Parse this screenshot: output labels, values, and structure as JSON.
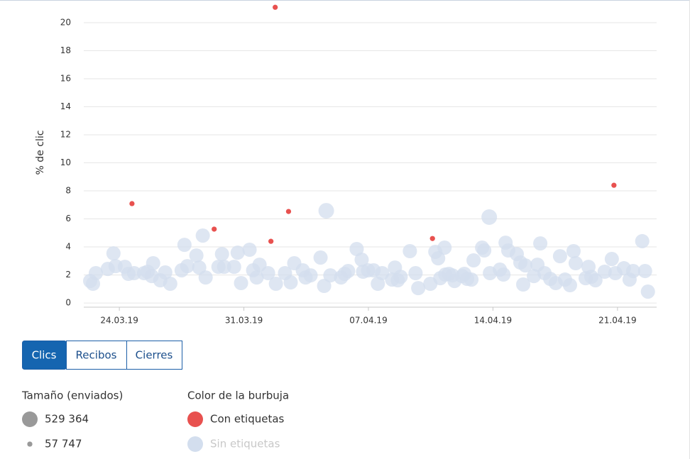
{
  "chart_data": {
    "type": "bubble",
    "y_label": "% de clic",
    "xlim": [
      0,
      32.2
    ],
    "xticks": [
      {
        "value": 2,
        "label": "24.03.19"
      },
      {
        "value": 9,
        "label": "31.03.19"
      },
      {
        "value": 16,
        "label": "07.04.19"
      },
      {
        "value": 23,
        "label": "14.04.19"
      },
      {
        "value": 30,
        "label": "21.04.19"
      }
    ],
    "ylim": [
      -0.3,
      21.4
    ],
    "yticks": [
      0,
      2,
      4,
      6,
      8,
      10,
      12,
      14,
      16,
      18,
      20
    ],
    "grid": true,
    "series": [
      {
        "name": "Con etiquetas",
        "color": "#e8514f",
        "x": [
          2.71,
          7.33,
          10.76,
          10.52,
          11.51,
          19.6,
          29.8
        ],
        "values": [
          7.09,
          5.27,
          21.1,
          4.4,
          6.53,
          4.6,
          8.4
        ],
        "sizes": [
          57747,
          57747,
          57747,
          57747,
          57747,
          57747,
          57747
        ]
      },
      {
        "name": "Sin etiquetas",
        "color": "#d3deee",
        "x": [
          0.36,
          0.52,
          0.68,
          1.35,
          1.67,
          1.79,
          2.31,
          2.51,
          2.83,
          3.39,
          3.59,
          3.9,
          3.82,
          4.3,
          4.58,
          4.86,
          5.5,
          5.66,
          5.82,
          6.33,
          6.49,
          6.69,
          6.85,
          7.57,
          7.77,
          7.89,
          8.45,
          8.65,
          8.84,
          9.32,
          9.52,
          9.72,
          9.88,
          10.36,
          10.8,
          11.31,
          11.63,
          11.83,
          12.31,
          12.47,
          12.75,
          13.31,
          13.51,
          13.63,
          13.86,
          14.46,
          14.66,
          14.86,
          15.34,
          15.62,
          15.7,
          15.98,
          16.29,
          16.53,
          16.77,
          17.33,
          17.49,
          17.65,
          17.81,
          18.33,
          18.65,
          18.8,
          19.48,
          19.76,
          19.92,
          20.04,
          20.28,
          20.32,
          20.52,
          20.72,
          20.84,
          21.27,
          21.39,
          21.55,
          21.79,
          21.91,
          22.39,
          22.51,
          22.79,
          22.83,
          23.39,
          23.59,
          23.71,
          23.86,
          24.34,
          24.54,
          24.7,
          24.82,
          25.3,
          25.5,
          25.66,
          25.9,
          26.22,
          26.53,
          26.77,
          27.05,
          27.33,
          27.53,
          27.65,
          28.21,
          28.37,
          28.53,
          28.76,
          29.28,
          29.68,
          29.88,
          30.36,
          30.68,
          30.88,
          31.39,
          31.55,
          31.71
        ],
        "values": [
          1.57,
          1.37,
          2.13,
          2.43,
          3.54,
          2.63,
          2.58,
          2.08,
          2.13,
          2.13,
          2.23,
          2.84,
          1.92,
          1.62,
          2.18,
          1.37,
          2.33,
          4.15,
          2.63,
          3.39,
          2.53,
          4.81,
          1.82,
          2.58,
          3.49,
          2.58,
          2.58,
          3.59,
          1.42,
          3.8,
          2.33,
          1.82,
          2.73,
          2.13,
          1.37,
          2.13,
          1.47,
          2.84,
          2.33,
          1.82,
          1.97,
          3.24,
          1.22,
          6.58,
          1.97,
          1.82,
          2.08,
          2.28,
          3.85,
          3.09,
          2.23,
          2.33,
          2.33,
          1.37,
          2.13,
          1.67,
          2.53,
          1.62,
          1.87,
          3.7,
          2.13,
          1.06,
          1.37,
          3.65,
          3.19,
          1.77,
          3.95,
          2.03,
          2.08,
          1.97,
          1.57,
          1.92,
          2.08,
          1.72,
          1.67,
          3.04,
          3.95,
          3.75,
          6.13,
          2.13,
          2.38,
          2.03,
          4.3,
          3.75,
          3.49,
          2.89,
          1.32,
          2.68,
          1.92,
          2.73,
          4.25,
          2.13,
          1.72,
          1.42,
          3.34,
          1.67,
          1.27,
          3.7,
          2.84,
          1.77,
          2.58,
          1.87,
          1.62,
          2.23,
          3.14,
          2.13,
          2.48,
          1.67,
          2.28,
          4.41,
          2.28,
          0.81
        ],
        "sizes": [
          440000,
          440000,
          440000,
          440000,
          440000,
          440000,
          440000,
          440000,
          440000,
          440000,
          440000,
          440000,
          440000,
          440000,
          440000,
          440000,
          440000,
          440000,
          440000,
          440000,
          440000,
          440000,
          440000,
          440000,
          440000,
          440000,
          440000,
          440000,
          440000,
          440000,
          440000,
          440000,
          440000,
          440000,
          440000,
          440000,
          440000,
          440000,
          440000,
          440000,
          440000,
          440000,
          440000,
          529364,
          440000,
          440000,
          440000,
          440000,
          440000,
          440000,
          440000,
          440000,
          440000,
          440000,
          440000,
          440000,
          440000,
          440000,
          440000,
          440000,
          440000,
          440000,
          440000,
          440000,
          440000,
          440000,
          440000,
          440000,
          440000,
          440000,
          440000,
          440000,
          440000,
          440000,
          440000,
          440000,
          440000,
          440000,
          529364,
          440000,
          440000,
          440000,
          440000,
          440000,
          440000,
          440000,
          440000,
          440000,
          440000,
          440000,
          440000,
          440000,
          440000,
          440000,
          440000,
          440000,
          440000,
          440000,
          440000,
          440000,
          440000,
          440000,
          440000,
          440000,
          440000,
          440000,
          440000,
          440000,
          440000,
          440000,
          440000,
          440000
        ]
      }
    ],
    "size_legend": {
      "title": "Tamaño (enviados)",
      "items": [
        {
          "value": 529364,
          "label": "529 364"
        },
        {
          "value": 57747,
          "label": "57 747"
        }
      ]
    },
    "color_legend_title": "Color de la burbuja"
  },
  "controls": {
    "buttons": [
      "Clics",
      "Recibos",
      "Cierres"
    ],
    "active": 0
  }
}
